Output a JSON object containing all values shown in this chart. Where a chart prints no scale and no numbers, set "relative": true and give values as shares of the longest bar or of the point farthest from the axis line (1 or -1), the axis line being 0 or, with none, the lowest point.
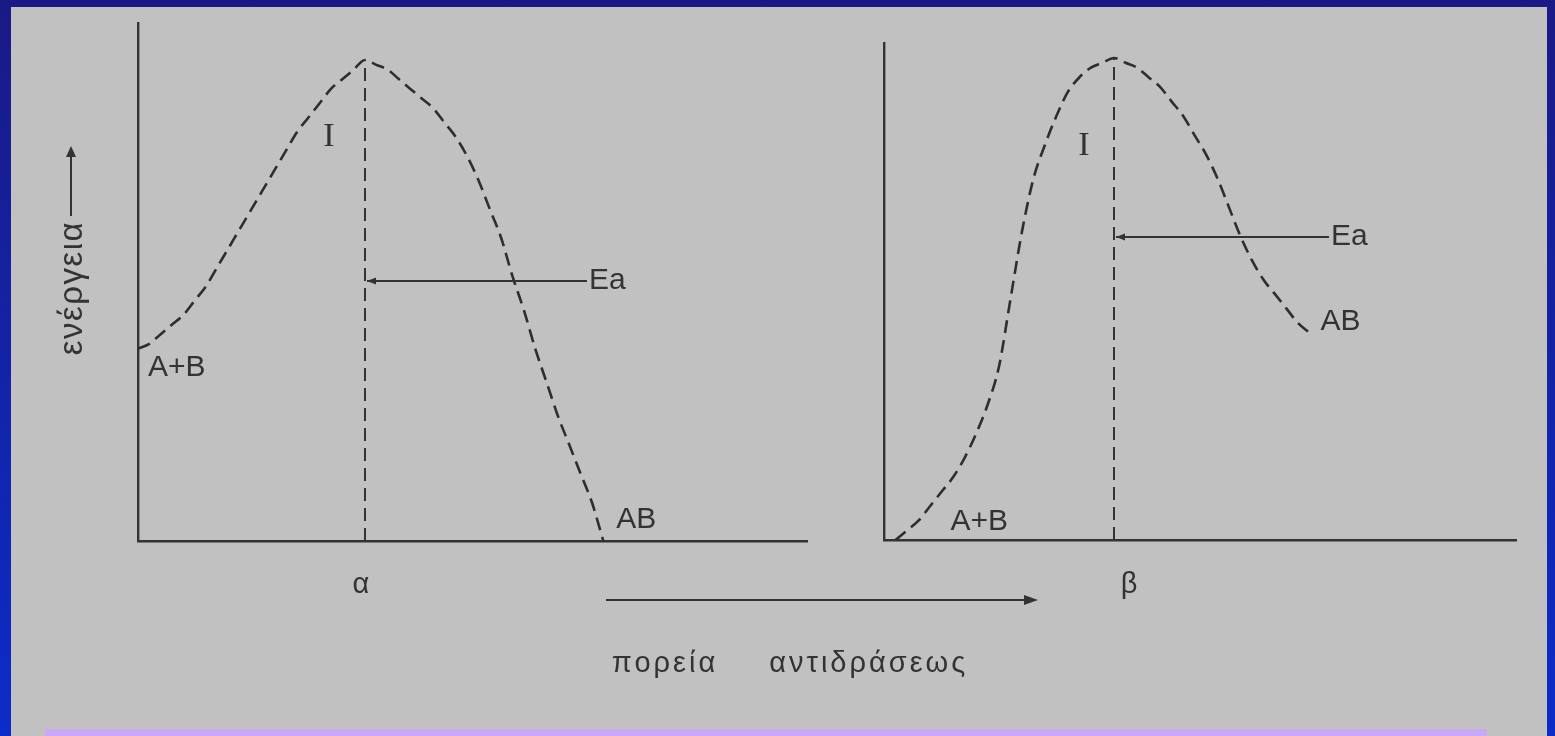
{
  "chart_data": [
    {
      "type": "line",
      "relative": true,
      "ylabel": "ενέργεια",
      "xlabel": "πορεία αντιδράσεως",
      "line_style": "dashed",
      "marker": "none",
      "categories": [
        null,
        null,
        null,
        null,
        null,
        null,
        null,
        null,
        null,
        null,
        null,
        null,
        null,
        null,
        null,
        null,
        null,
        null,
        null,
        null,
        null,
        null,
        null,
        null,
        null,
        null,
        null,
        null,
        null,
        null,
        null,
        null,
        null,
        null,
        null,
        null,
        null,
        null,
        null,
        null,
        null,
        null,
        null,
        null,
        null,
        null,
        null,
        null,
        null,
        null,
        null,
        null,
        null,
        null,
        null,
        null,
        null,
        null,
        null,
        null
      ],
      "series": [
        {
          "color": "#2e2e2e",
          "values": [
            0.4,
            0.41,
            0.43,
            0.45,
            0.47,
            0.5,
            0.53,
            0.57,
            0.61,
            0.65,
            0.69,
            0.73,
            0.77,
            0.81,
            0.85,
            0.88,
            0.91,
            0.94,
            0.96,
            0.98,
            1,
            0.99,
            0.98,
            0.96,
            0.94,
            0.92,
            0.9,
            0.87,
            0.84,
            0.8,
            0.75,
            0.69,
            0.63,
            0.55,
            0.48,
            0.4,
            0.33,
            0.26,
            0.2,
            0.14,
            0.08,
            0,
            null,
            null,
            null,
            null,
            null,
            null,
            null,
            null,
            null,
            null,
            null,
            null,
            null,
            null,
            null,
            null,
            null,
            null
          ]
        }
      ],
      "annotations": [
        "α",
        "I",
        "Ea",
        "A+B",
        "AB"
      ]
    },
    {
      "type": "line",
      "relative": true,
      "line_style": "dashed",
      "marker": "none",
      "categories": [
        null,
        null,
        null,
        null,
        null,
        null,
        null,
        null,
        null,
        null,
        null,
        null,
        null,
        null,
        null,
        null,
        null,
        null,
        null,
        null,
        null,
        null,
        null,
        null,
        null,
        null,
        null,
        null,
        null,
        null,
        null,
        null,
        null,
        null,
        null,
        null,
        null,
        null,
        null,
        null,
        null,
        null,
        null,
        null,
        null,
        null,
        null,
        null,
        null,
        null,
        null,
        null,
        null,
        null,
        null,
        null
      ],
      "series": [
        {
          "color": "#2e2e2e",
          "values": [
            null,
            0,
            0.02,
            0.04,
            0.07,
            0.1,
            0.13,
            0.17,
            0.22,
            0.28,
            0.36,
            0.5,
            0.64,
            0.75,
            0.82,
            0.88,
            0.93,
            0.96,
            0.98,
            0.99,
            1,
            0.99,
            0.98,
            0.96,
            0.94,
            0.91,
            0.88,
            0.84,
            0.8,
            0.75,
            0.69,
            0.63,
            0.58,
            0.54,
            0.51,
            0.48,
            0.45,
            0.43,
            null,
            null,
            null,
            null,
            null,
            null,
            null,
            null,
            null,
            null,
            null,
            null,
            null,
            null,
            null,
            null,
            null,
            null
          ]
        }
      ],
      "annotations": [
        "β",
        "I",
        "Ea",
        "A+B",
        "AB"
      ]
    }
  ]
}
